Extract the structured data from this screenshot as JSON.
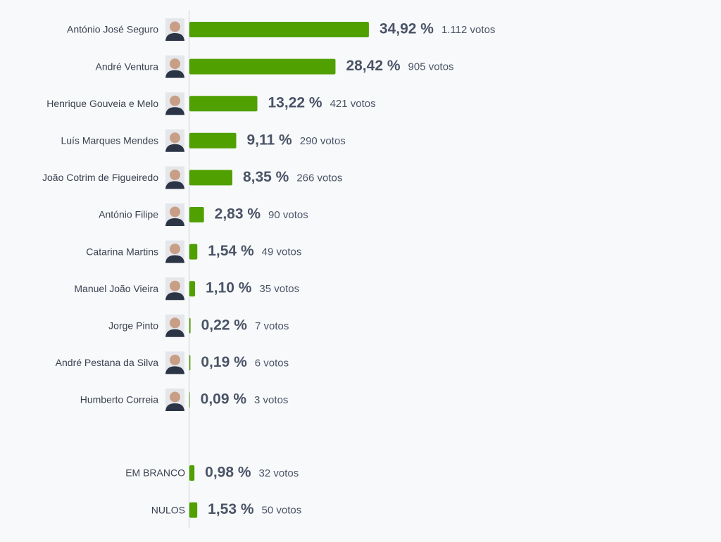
{
  "chart_data": [
    {
      "type": "bar",
      "orientation": "horizontal",
      "color": "#4fa000",
      "xlim": [
        0,
        100
      ],
      "categories": [
        "António José Seguro",
        "André Ventura",
        "Henrique Gouveia e Melo",
        "Luís Marques Mendes",
        "João Cotrim de Figueiredo",
        "António Filipe",
        "Catarina Martins",
        "Manuel João Vieira",
        "Jorge Pinto",
        "André Pestana da Silva",
        "Humberto Correia"
      ],
      "values": [
        34.92,
        28.42,
        13.22,
        9.11,
        8.35,
        2.83,
        1.54,
        1.1,
        0.22,
        0.19,
        0.09
      ],
      "value_labels": [
        "34,92 %",
        "28,42 %",
        "13,22 %",
        "9,11 %",
        "8,35 %",
        "2,83 %",
        "1,54 %",
        "1,10 %",
        "0,22 %",
        "0,19 %",
        "0,09 %"
      ],
      "votes": [
        1112,
        905,
        421,
        290,
        266,
        90,
        49,
        35,
        7,
        6,
        3
      ],
      "votes_labels": [
        "1.112 votos",
        "905 votos",
        "421 votos",
        "290 votos",
        "266 votos",
        "90 votos",
        "49 votos",
        "35 votos",
        "7 votos",
        "6 votos",
        "3 votos"
      ]
    },
    {
      "type": "bar",
      "orientation": "horizontal",
      "color": "#4fa000",
      "xlim": [
        0,
        100
      ],
      "categories": [
        "EM BRANCO",
        "NULOS"
      ],
      "values": [
        0.98,
        1.53
      ],
      "value_labels": [
        "0,98 %",
        "1,53 %"
      ],
      "votes": [
        32,
        50
      ],
      "votes_labels": [
        "32 votos",
        "50 votos"
      ]
    }
  ]
}
